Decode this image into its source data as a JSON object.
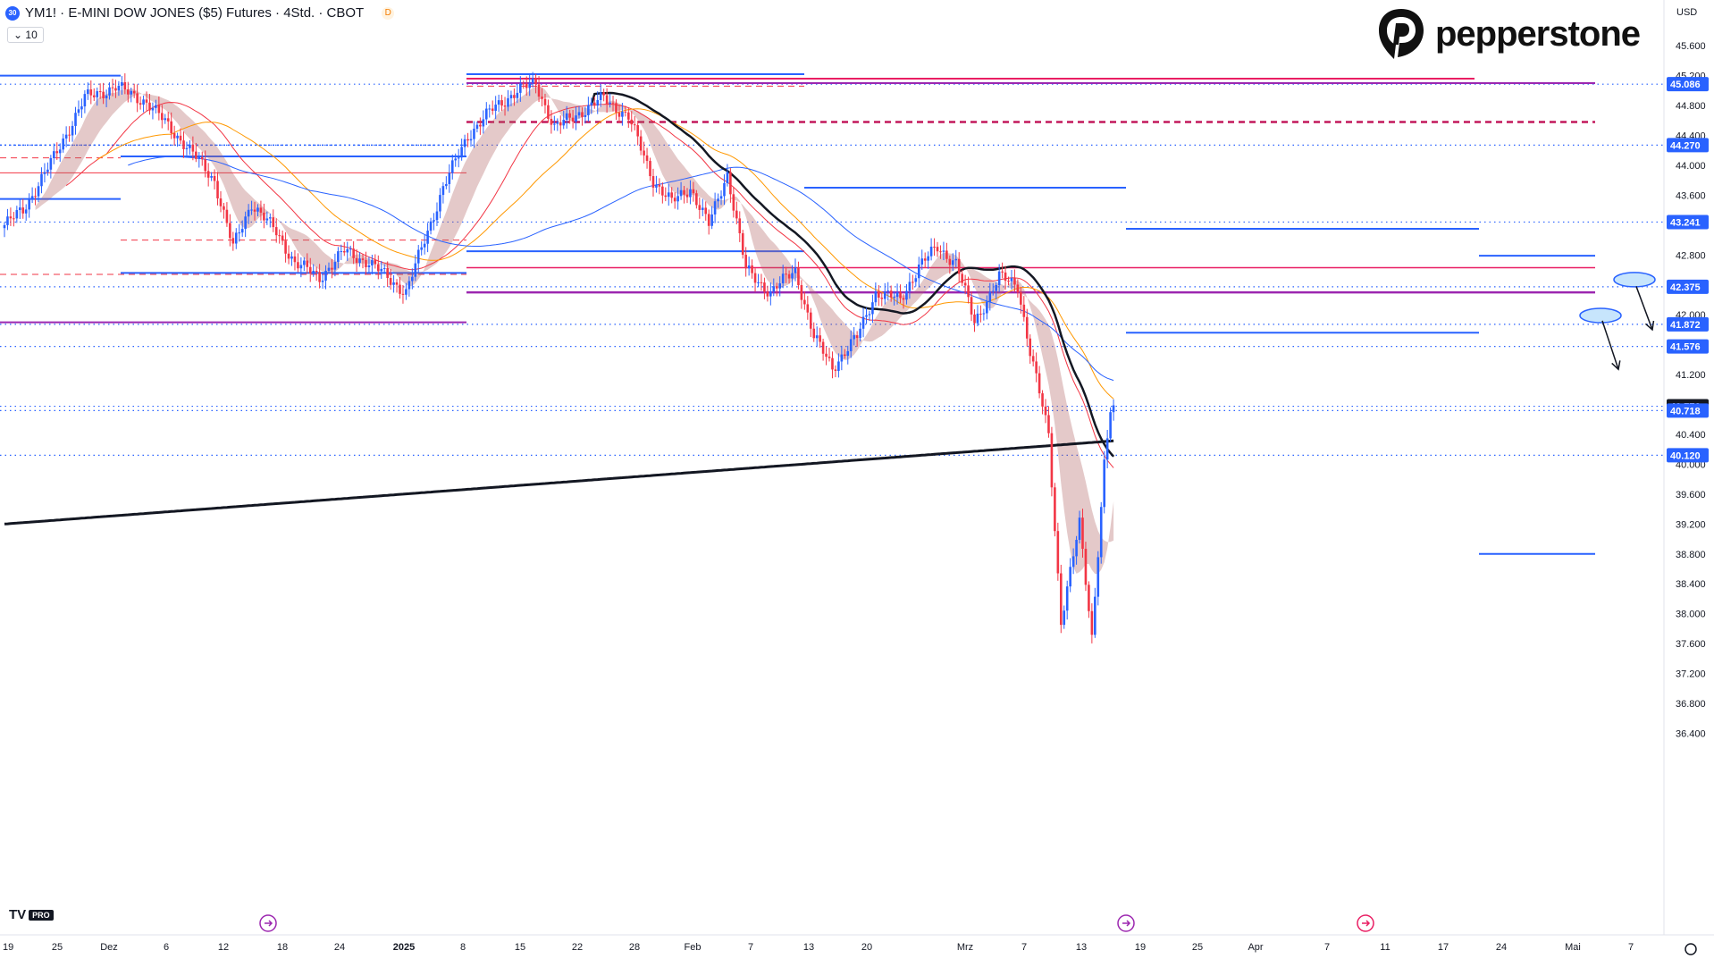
{
  "header": {
    "symbol_badge": "30",
    "title": "YM1! · E-MINI DOW JONES ($5) Futures · 4Std. · CBOT",
    "delay_badge": "D",
    "indicator_count": "10"
  },
  "brand": {
    "name": "pepperstone"
  },
  "currency": "USD",
  "tv_logo": {
    "text": "TV",
    "badge": "PRO"
  },
  "chart_data": {
    "type": "candlestick",
    "ylim": [
      36200,
      45800
    ],
    "y_ticks": [
      36400,
      36800,
      37200,
      37600,
      38000,
      38400,
      38800,
      39200,
      39600,
      40000,
      40400,
      41200,
      42000,
      42800,
      43600,
      44000,
      44400,
      44800,
      45200,
      45600
    ],
    "y_tick_labels": [
      "36.400",
      "36.800",
      "37.200",
      "37.600",
      "38.000",
      "38.400",
      "38.800",
      "39.200",
      "39.600",
      "40.000",
      "40.400",
      "41.200",
      "42.000",
      "42.800",
      "43.600",
      "44.000",
      "44.400",
      "44.800",
      "45.200",
      "45.600"
    ],
    "x_tick_labels": [
      "19",
      "25",
      "Dez",
      "6",
      "12",
      "18",
      "24",
      "2025",
      "8",
      "15",
      "22",
      "28",
      "Feb",
      "7",
      "13",
      "20",
      "Mrz",
      "7",
      "13",
      "19",
      "25",
      "Apr",
      "7",
      "11",
      "17",
      "24",
      "Mai",
      "7"
    ],
    "x_tick_bold": [
      "2025"
    ],
    "price_levels": [
      {
        "label": "45.086",
        "value": 45086,
        "color": "#2962ff"
      },
      {
        "label": "44.270",
        "value": 44270,
        "color": "#2962ff"
      },
      {
        "label": "43.241",
        "value": 43241,
        "color": "#2962ff"
      },
      {
        "label": "42.375",
        "value": 42375,
        "color": "#2962ff"
      },
      {
        "label": "41.872",
        "value": 41872,
        "color": "#2962ff"
      },
      {
        "label": "41.576",
        "value": 41576,
        "color": "#2962ff"
      },
      {
        "label": "40.776",
        "value": 40776,
        "color": "#131722"
      },
      {
        "label": "40.718",
        "value": 40718,
        "color": "#2962ff"
      },
      {
        "label": "40.120",
        "value": 40120,
        "color": "#2962ff"
      }
    ],
    "up_color": "#2962ff",
    "down_color": "#f23645",
    "bar_count": 222,
    "candle_anchors": [
      [
        0,
        43200
      ],
      [
        6,
        43400
      ],
      [
        16,
        44100
      ],
      [
        26,
        44900
      ],
      [
        36,
        45050
      ],
      [
        46,
        44850
      ],
      [
        58,
        44300
      ],
      [
        68,
        43800
      ],
      [
        74,
        42900
      ],
      [
        80,
        43500
      ],
      [
        88,
        43100
      ],
      [
        94,
        42700
      ],
      [
        102,
        42500
      ],
      [
        110,
        42850
      ],
      [
        118,
        42700
      ],
      [
        124,
        42500
      ],
      [
        130,
        42300
      ],
      [
        136,
        43000
      ],
      [
        142,
        43700
      ],
      [
        150,
        44400
      ],
      [
        158,
        44750
      ],
      [
        166,
        45000
      ],
      [
        172,
        45100
      ],
      [
        178,
        44500
      ],
      [
        186,
        44700
      ],
      [
        194,
        44900
      ],
      [
        202,
        44650
      ],
      [
        210,
        43800
      ],
      [
        216,
        43500
      ],
      [
        222,
        43700
      ],
      [
        228,
        43200
      ],
      [
        234,
        43900
      ],
      [
        240,
        42600
      ],
      [
        248,
        42300
      ],
      [
        256,
        42600
      ],
      [
        262,
        41700
      ],
      [
        268,
        41300
      ],
      [
        276,
        41700
      ],
      [
        282,
        42300
      ],
      [
        290,
        42200
      ],
      [
        296,
        42650
      ],
      [
        302,
        42900
      ],
      [
        308,
        42700
      ],
      [
        314,
        41900
      ],
      [
        322,
        42500
      ],
      [
        328,
        42400
      ],
      [
        332,
        41500
      ],
      [
        338,
        40400
      ],
      [
        342,
        37900
      ],
      [
        348,
        39200
      ],
      [
        352,
        37700
      ],
      [
        356,
        40000
      ],
      [
        358,
        40700
      ]
    ],
    "levels": [
      {
        "y": 45200,
        "x0": 0,
        "x1": 135,
        "color": "#2962ff",
        "style": "solid",
        "width": 2
      },
      {
        "y": 44270,
        "x0": 0,
        "x1": 522,
        "color": "#2962ff",
        "style": "dotted",
        "width": 1.5
      },
      {
        "y": 44120,
        "x0": 135,
        "x1": 522,
        "color": "#2962ff",
        "style": "solid",
        "width": 2
      },
      {
        "y": 44100,
        "x0": 0,
        "x1": 135,
        "color": "#f23645",
        "style": "dashed",
        "width": 1
      },
      {
        "y": 43550,
        "x0": 0,
        "x1": 135,
        "color": "#2962ff",
        "style": "solid",
        "width": 2
      },
      {
        "y": 43900,
        "x0": 0,
        "x1": 522,
        "color": "#f23645",
        "style": "solid",
        "width": 1
      },
      {
        "y": 43000,
        "x0": 135,
        "x1": 522,
        "color": "#f23645",
        "style": "dashed",
        "width": 1
      },
      {
        "y": 42540,
        "x0": 0,
        "x1": 522,
        "color": "#f23645",
        "style": "dashed",
        "width": 1
      },
      {
        "y": 42560,
        "x0": 135,
        "x1": 522,
        "color": "#2962ff",
        "style": "solid",
        "width": 2
      },
      {
        "y": 41900,
        "x0": 0,
        "x1": 522,
        "color": "#9c27b0",
        "style": "solid",
        "width": 2
      },
      {
        "y": 45220,
        "x0": 522,
        "x1": 900,
        "color": "#2962ff",
        "style": "solid",
        "width": 2
      },
      {
        "y": 45160,
        "x0": 522,
        "x1": 1650,
        "color": "#e91e63",
        "style": "solid",
        "width": 2
      },
      {
        "y": 45100,
        "x0": 522,
        "x1": 1785,
        "color": "#9c27b0",
        "style": "solid",
        "width": 2
      },
      {
        "y": 45060,
        "x0": 522,
        "x1": 900,
        "color": "#f23645",
        "style": "dashed",
        "width": 1
      },
      {
        "y": 44580,
        "x0": 522,
        "x1": 1785,
        "color": "#c2185b",
        "style": "dashed",
        "width": 2.5
      },
      {
        "y": 42850,
        "x0": 522,
        "x1": 900,
        "color": "#2962ff",
        "style": "solid",
        "width": 2
      },
      {
        "y": 43700,
        "x0": 900,
        "x1": 1260,
        "color": "#2962ff",
        "style": "solid",
        "width": 2
      },
      {
        "y": 42630,
        "x0": 522,
        "x1": 1785,
        "color": "#e91e63",
        "style": "solid",
        "width": 1.5
      },
      {
        "y": 42300,
        "x0": 522,
        "x1": 1785,
        "color": "#9c27b0",
        "style": "solid",
        "width": 2.5
      },
      {
        "y": 43150,
        "x0": 1260,
        "x1": 1655,
        "color": "#2962ff",
        "style": "solid",
        "width": 2
      },
      {
        "y": 42790,
        "x0": 1655,
        "x1": 1785,
        "color": "#2962ff",
        "style": "solid",
        "width": 2
      },
      {
        "y": 41760,
        "x0": 1260,
        "x1": 1655,
        "color": "#2962ff",
        "style": "solid",
        "width": 2
      },
      {
        "y": 38800,
        "x0": 1655,
        "x1": 1785,
        "color": "#2962ff",
        "style": "solid",
        "width": 2
      }
    ],
    "ellipses": [
      {
        "x": 1829,
        "y": 42470
      },
      {
        "x": 1791,
        "y": 41990
      }
    ],
    "arrows": [
      [
        1831,
        42380,
        1849,
        41800
      ],
      [
        1793,
        41920,
        1811,
        41270
      ]
    ]
  }
}
